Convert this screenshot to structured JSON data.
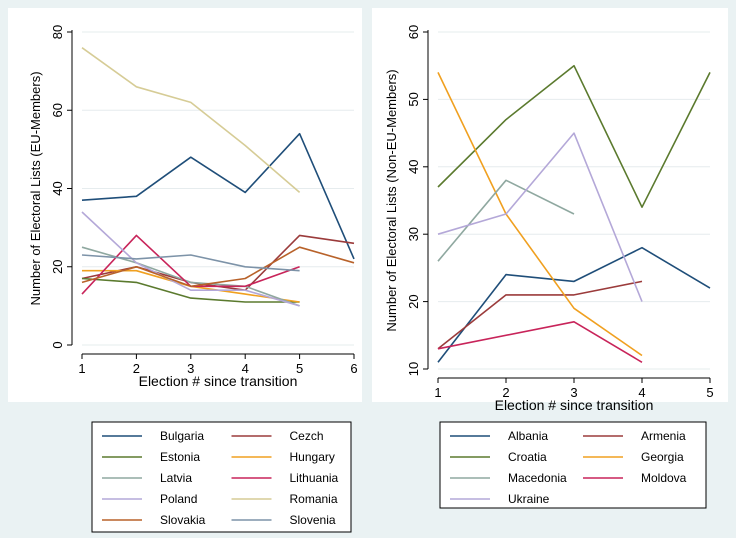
{
  "chart_data": [
    {
      "type": "line",
      "xlabel": "Election # since transition",
      "ylabel": "Number of Electoral Lists (EU-Members)",
      "xlim": [
        1,
        6
      ],
      "ylim": [
        0,
        80
      ],
      "xticks": [
        1,
        2,
        3,
        4,
        5,
        6
      ],
      "yticks": [
        0,
        20,
        40,
        60,
        80
      ],
      "grid": true,
      "legend": "bottom",
      "series": [
        {
          "name": "Bulgaria",
          "color": "#1f4e79",
          "x": [
            1,
            2,
            3,
            4,
            5,
            6
          ],
          "y": [
            37,
            38,
            48,
            39,
            54,
            22
          ]
        },
        {
          "name": "Cezch",
          "color": "#9b3b3b",
          "x": [
            1,
            2,
            3,
            4,
            5,
            6
          ],
          "y": [
            17,
            20,
            16,
            14,
            28,
            26
          ]
        },
        {
          "name": "Estonia",
          "color": "#5b7a2e",
          "x": [
            1,
            2,
            3,
            4,
            5
          ],
          "y": [
            17,
            16,
            12,
            11,
            11
          ]
        },
        {
          "name": "Hungary",
          "color": "#f0a020",
          "x": [
            1,
            2,
            3,
            4,
            5
          ],
          "y": [
            19,
            19,
            15,
            13,
            11
          ]
        },
        {
          "name": "Latvia",
          "color": "#8fa8a0",
          "x": [
            1,
            2,
            3,
            4,
            5
          ],
          "y": [
            25,
            21,
            16,
            15,
            10
          ]
        },
        {
          "name": "Lithuania",
          "color": "#c8245a",
          "x": [
            1,
            2,
            3,
            4,
            5
          ],
          "y": [
            13,
            28,
            15,
            15,
            20
          ]
        },
        {
          "name": "Poland",
          "color": "#b4a8d8",
          "x": [
            1,
            2,
            3,
            4,
            5
          ],
          "y": [
            34,
            21,
            14,
            14,
            10
          ]
        },
        {
          "name": "Romania",
          "color": "#d6cc96",
          "x": [
            1,
            2,
            3,
            4,
            5
          ],
          "y": [
            76,
            66,
            62,
            51,
            39
          ]
        },
        {
          "name": "Slovakia",
          "color": "#b8622a",
          "x": [
            1,
            2,
            3,
            4,
            5,
            6
          ],
          "y": [
            16,
            20,
            15,
            17,
            25,
            21
          ]
        },
        {
          "name": "Slovenia",
          "color": "#7d93a8",
          "x": [
            1,
            2,
            3,
            4,
            5
          ],
          "y": [
            23,
            22,
            23,
            20,
            19
          ]
        }
      ]
    },
    {
      "type": "line",
      "xlabel": "Election # since transition",
      "ylabel": "Number of Electoral Lists (Non-EU-Members)",
      "xlim": [
        1,
        5
      ],
      "ylim": [
        10,
        60
      ],
      "xticks": [
        1,
        2,
        3,
        4,
        5
      ],
      "yticks": [
        10,
        20,
        30,
        40,
        50,
        60
      ],
      "grid": true,
      "legend": "bottom",
      "series": [
        {
          "name": "Albania",
          "color": "#1f4e79",
          "x": [
            1,
            2,
            3,
            4,
            5
          ],
          "y": [
            11,
            24,
            23,
            28,
            22
          ]
        },
        {
          "name": "Armenia",
          "color": "#9b3b3b",
          "x": [
            1,
            2,
            3,
            4
          ],
          "y": [
            13,
            21,
            21,
            23
          ]
        },
        {
          "name": "Croatia",
          "color": "#5b7a2e",
          "x": [
            1,
            2,
            3,
            4,
            5
          ],
          "y": [
            37,
            47,
            55,
            34,
            54
          ]
        },
        {
          "name": "Georgia",
          "color": "#f0a020",
          "x": [
            1,
            2,
            3,
            4
          ],
          "y": [
            54,
            33,
            19,
            12
          ]
        },
        {
          "name": "Macedonia",
          "color": "#8fa8a0",
          "x": [
            1,
            2,
            3
          ],
          "y": [
            26,
            38,
            33
          ]
        },
        {
          "name": "Moldova",
          "color": "#c8245a",
          "x": [
            1,
            3,
            4
          ],
          "y": [
            13,
            17,
            11
          ]
        },
        {
          "name": "Ukraine",
          "color": "#b4a8d8",
          "x": [
            1,
            2,
            3,
            4
          ],
          "y": [
            30,
            33,
            45,
            20
          ]
        }
      ]
    }
  ]
}
